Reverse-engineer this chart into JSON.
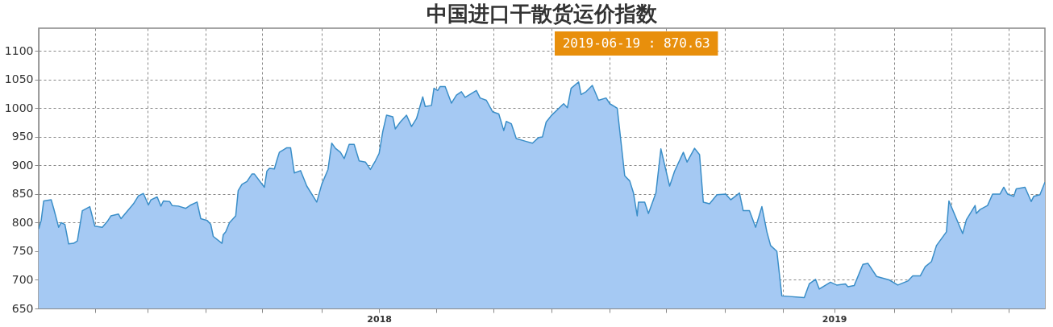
{
  "chart_data": {
    "type": "area",
    "title": "中国进口干散货运价指数",
    "x": [
      "2017-04-03",
      "2017-04-05",
      "2017-04-07",
      "2017-04-13",
      "2017-04-15",
      "2017-04-19",
      "2017-04-21",
      "2017-04-24",
      "2017-04-27",
      "2017-05-01",
      "2017-05-04",
      "2017-05-08",
      "2017-05-14",
      "2017-05-18",
      "2017-05-24",
      "2017-05-28",
      "2017-05-31",
      "2017-06-06",
      "2017-06-08",
      "2017-06-18",
      "2017-06-22",
      "2017-06-26",
      "2017-06-30",
      "2017-07-02",
      "2017-07-07",
      "2017-07-10",
      "2017-07-12",
      "2017-07-17",
      "2017-07-19",
      "2017-07-24",
      "2017-07-30",
      "2017-08-03",
      "2017-08-08",
      "2017-08-11",
      "2017-08-16",
      "2017-08-19",
      "2017-08-21",
      "2017-08-28",
      "2017-08-29",
      "2017-08-31",
      "2017-09-03",
      "2017-09-08",
      "2017-09-10",
      "2017-09-13",
      "2017-09-17",
      "2017-09-21",
      "2017-09-23",
      "2017-10-01",
      "2017-10-03",
      "2017-10-05",
      "2017-10-09",
      "2017-10-11",
      "2017-10-13",
      "2017-10-19",
      "2017-10-22",
      "2017-10-25",
      "2017-10-30",
      "2017-11-04",
      "2017-11-12",
      "2017-11-16",
      "2017-11-21",
      "2017-11-24",
      "2017-11-27",
      "2017-12-01",
      "2017-12-04",
      "2017-12-08",
      "2017-12-12",
      "2017-12-16",
      "2017-12-21",
      "2017-12-25",
      "2017-12-29",
      "2018-01-01",
      "2018-01-04",
      "2018-01-07",
      "2018-01-12",
      "2018-01-14",
      "2018-01-18",
      "2018-01-23",
      "2018-01-27",
      "2018-01-31",
      "2018-02-05",
      "2018-02-07",
      "2018-02-12",
      "2018-02-14",
      "2018-02-17",
      "2018-02-19",
      "2018-02-23",
      "2018-02-28",
      "2018-03-04",
      "2018-03-08",
      "2018-03-11",
      "2018-03-20",
      "2018-03-23",
      "2018-03-28",
      "2018-04-02",
      "2018-04-07",
      "2018-04-11",
      "2018-04-13",
      "2018-04-17",
      "2018-04-21",
      "2018-04-29",
      "2018-05-04",
      "2018-05-09",
      "2018-05-12",
      "2018-05-15",
      "2018-05-19",
      "2018-05-29",
      "2018-06-01",
      "2018-06-04",
      "2018-06-10",
      "2018-06-12",
      "2018-06-16",
      "2018-06-21",
      "2018-06-26",
      "2018-07-02",
      "2018-07-05",
      "2018-07-11",
      "2018-07-17",
      "2018-07-21",
      "2018-07-24",
      "2018-07-27",
      "2018-07-28",
      "2018-08-02",
      "2018-08-05",
      "2018-08-11",
      "2018-08-15",
      "2018-08-22",
      "2018-08-26",
      "2018-09-02",
      "2018-09-05",
      "2018-09-11",
      "2018-09-15",
      "2018-09-18",
      "2018-09-23",
      "2018-09-29",
      "2018-10-06",
      "2018-10-10",
      "2018-10-17",
      "2018-10-20",
      "2018-10-25",
      "2018-10-30",
      "2018-11-04",
      "2018-11-08",
      "2018-11-11",
      "2018-11-16",
      "2018-11-20",
      "2018-12-08",
      "2018-12-12",
      "2018-12-17",
      "2018-12-20",
      "2018-12-29",
      "2019-01-03",
      "2019-01-10",
      "2019-01-12",
      "2019-01-17",
      "2019-01-24",
      "2019-01-28",
      "2019-02-04",
      "2019-02-14",
      "2019-02-21",
      "2019-03-01",
      "2019-03-05",
      "2019-03-11",
      "2019-03-15",
      "2019-03-20",
      "2019-03-24",
      "2019-04-01",
      "2019-04-03",
      "2019-04-14",
      "2019-04-17",
      "2019-04-24",
      "2019-04-25",
      "2019-04-28",
      "2019-05-04",
      "2019-05-08",
      "2019-05-14",
      "2019-05-17",
      "2019-05-20",
      "2019-05-25",
      "2019-05-27",
      "2019-06-03",
      "2019-06-08",
      "2019-06-10",
      "2019-06-15",
      "2019-06-19"
    ],
    "series": [
      {
        "color": "#a5c9f3",
        "values": [
          789,
          804,
          838,
          840,
          825,
          792,
          800,
          797,
          763,
          764,
          768,
          821,
          828,
          794,
          792,
          802,
          812,
          815,
          807,
          833,
          847,
          851,
          831,
          840,
          845,
          829,
          838,
          837,
          830,
          829,
          825,
          831,
          836,
          807,
          804,
          797,
          776,
          764,
          779,
          784,
          800,
          812,
          856,
          867,
          872,
          885,
          885,
          862,
          890,
          895,
          894,
          909,
          923,
          931,
          931,
          887,
          891,
          864,
          836,
          867,
          893,
          939,
          930,
          923,
          912,
          937,
          937,
          908,
          906,
          893,
          908,
          921,
          960,
          988,
          985,
          964,
          976,
          988,
          968,
          982,
          1020,
          1003,
          1005,
          1035,
          1031,
          1038,
          1038,
          1009,
          1023,
          1029,
          1019,
          1031,
          1018,
          1014,
          994,
          990,
          961,
          977,
          973,
          947,
          942,
          939,
          949,
          950,
          976,
          987,
          1008,
          1001,
          1035,
          1046,
          1024,
          1029,
          1040,
          1014,
          1018,
          1008,
          1000,
          882,
          873,
          852,
          812,
          836,
          836,
          816,
          852,
          929,
          864,
          890,
          923,
          906,
          930,
          919,
          836,
          833,
          849,
          850,
          840,
          852,
          821,
          821,
          792,
          828,
          784,
          760,
          750,
          672,
          669,
          693,
          701,
          684,
          696,
          691,
          693,
          688,
          690,
          727,
          729,
          706,
          700,
          691,
          698,
          707,
          707,
          723,
          732,
          760,
          784,
          838,
          781,
          805,
          830,
          816,
          823,
          830,
          850,
          850,
          862,
          850,
          846,
          859,
          862,
          837,
          846,
          849,
          870.63
        ]
      }
    ],
    "xlim": [
      "2017-04-03",
      "2019-06-19"
    ],
    "xticks": [
      {
        "value": "2017-05-18",
        "label": null
      },
      {
        "value": "2017-06-29",
        "label": null
      },
      {
        "value": "2017-08-15",
        "label": null
      },
      {
        "value": "2017-09-29",
        "label": null
      },
      {
        "value": "2017-11-16",
        "label": null
      },
      {
        "value": "2018-01-01",
        "label": "2018"
      },
      {
        "value": "2018-02-16",
        "label": null
      },
      {
        "value": "2018-04-03",
        "label": null
      },
      {
        "value": "2018-05-19",
        "label": null
      },
      {
        "value": "2018-07-05",
        "label": null
      },
      {
        "value": "2018-08-19",
        "label": null
      },
      {
        "value": "2018-10-05",
        "label": null
      },
      {
        "value": "2018-11-21",
        "label": null
      },
      {
        "value": "2019-01-01",
        "label": "2019"
      },
      {
        "value": "2019-02-18",
        "label": null
      },
      {
        "value": "2019-04-05",
        "label": null
      },
      {
        "value": "2019-05-21",
        "label": null
      }
    ],
    "ylim": [
      650,
      1140
    ],
    "yticks": [
      650,
      700,
      750,
      800,
      850,
      900,
      950,
      1000,
      1050,
      1100
    ],
    "grid": true,
    "line_style": "solid",
    "annotations": [
      "2019-06-19 : 870.63"
    ]
  }
}
